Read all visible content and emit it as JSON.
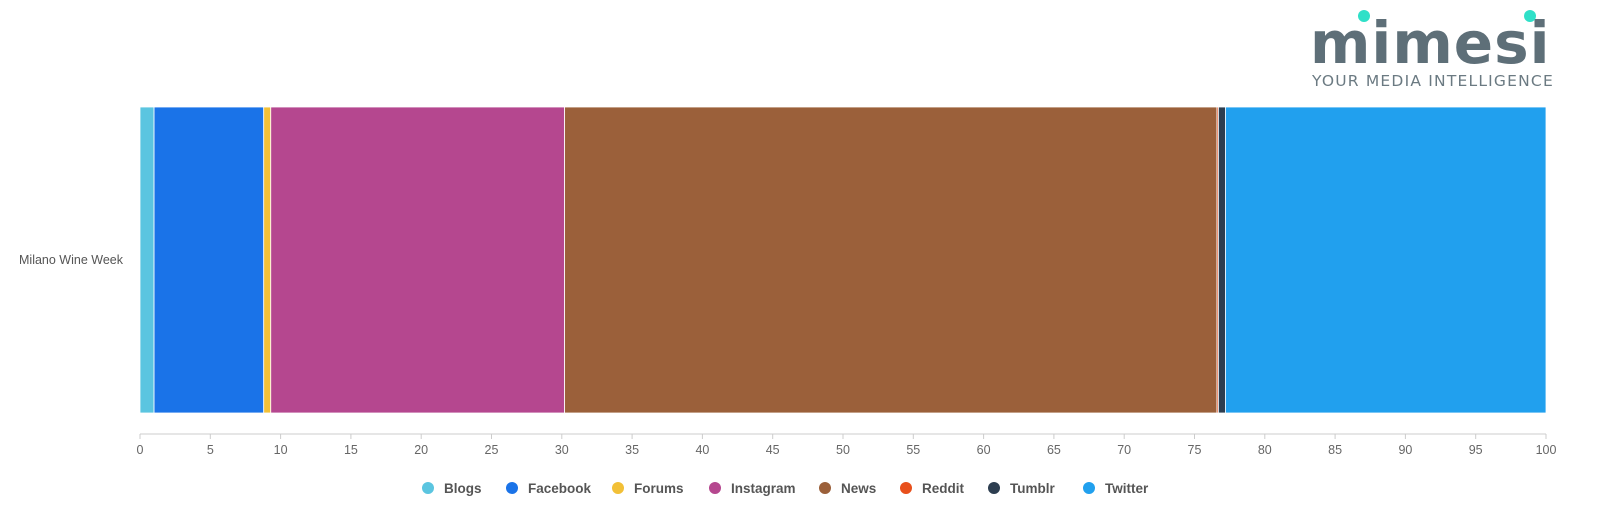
{
  "chart_data": {
    "type": "bar",
    "orientation": "horizontal",
    "stacked": true,
    "normalized": true,
    "categories": [
      "Milano Wine Week"
    ],
    "series": [
      {
        "name": "Blogs",
        "values": [
          1.0
        ],
        "color": "#5bc5e0"
      },
      {
        "name": "Facebook",
        "values": [
          7.8
        ],
        "color": "#1a73e8"
      },
      {
        "name": "Forums",
        "values": [
          0.5
        ],
        "color": "#f2c037"
      },
      {
        "name": "Instagram",
        "values": [
          20.9
        ],
        "color": "#b5478f"
      },
      {
        "name": "News",
        "values": [
          46.4
        ],
        "color": "#9b603a"
      },
      {
        "name": "Reddit",
        "values": [
          0.1
        ],
        "color": "#e8501c"
      },
      {
        "name": "Tumblr",
        "values": [
          0.5
        ],
        "color": "#2d3e50"
      },
      {
        "name": "Twitter",
        "values": [
          22.8
        ],
        "color": "#21a0ee"
      }
    ],
    "xlim": [
      0,
      100
    ],
    "xticks": [
      0,
      5,
      10,
      15,
      20,
      25,
      30,
      35,
      40,
      45,
      50,
      55,
      60,
      65,
      70,
      75,
      80,
      85,
      90,
      95,
      100
    ],
    "grid": false,
    "legend_position": "bottom"
  },
  "logo": {
    "name": "mimesi",
    "tagline": "YOUR MEDIA INTELLIGENCE",
    "dot_color": "#2fe0c8"
  }
}
